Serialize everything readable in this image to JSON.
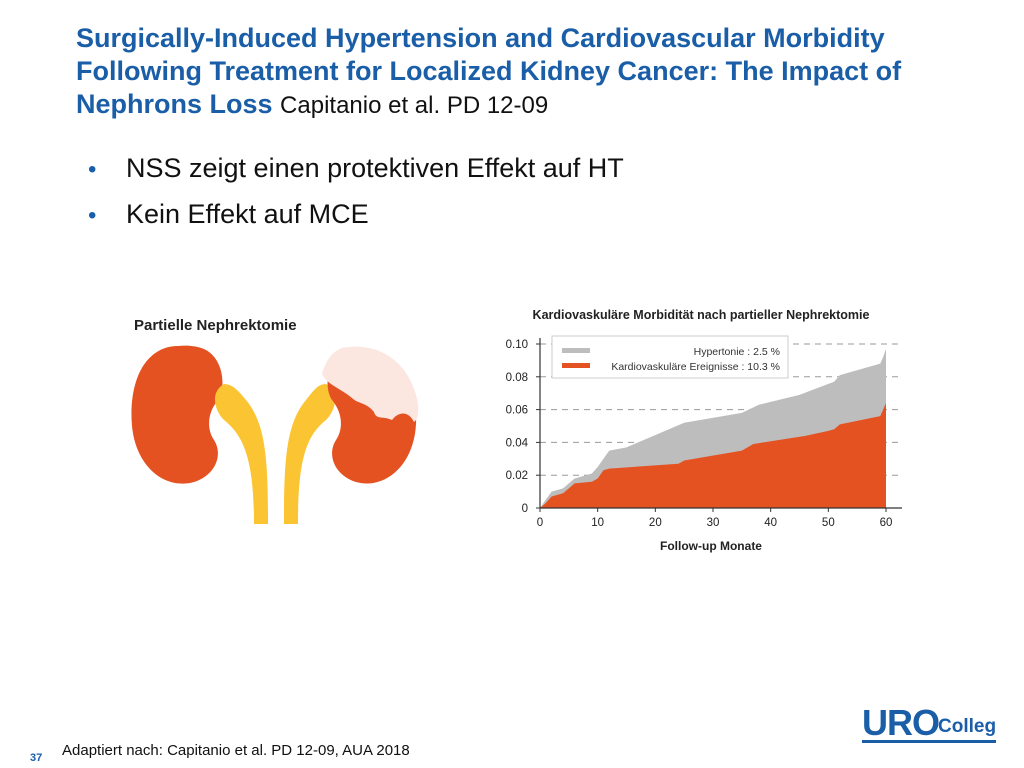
{
  "slide": {
    "title": "Surgically-Induced Hypertension and Cardiovascular Morbidity Following Treatment for Localized Kidney Cancer: The Impact of Nephrons Loss",
    "title_ref": "Capitanio et al. PD 12-09",
    "bullets": [
      "NSS zeigt einen protektiven Effekt auf HT",
      "Kein Effekt auf MCE"
    ],
    "illustration_label": "Partielle Nephrektomie",
    "footer": "Adaptiert nach: Capitanio et al. PD 12-09, AUA 2018",
    "page_number": "37",
    "logo": {
      "main": "URO",
      "sub": "Colleg"
    },
    "colors": {
      "title_blue": "#1a5ea8",
      "kidney_orange": "#e55222",
      "kidney_removed": "#fbe6e0",
      "ureter_yellow": "#fbc433"
    }
  },
  "chart_data": {
    "type": "area",
    "title": "Kardiovaskuläre Morbidität nach partieller Nephrektomie",
    "xlabel": "Follow-up Monate",
    "ylabel": "",
    "xlim": [
      0,
      60
    ],
    "ylim": [
      0,
      0.1
    ],
    "x_ticks": [
      0,
      10,
      20,
      30,
      40,
      50,
      60
    ],
    "y_ticks": [
      0,
      0.02,
      0.04,
      0.06,
      0.08,
      0.1
    ],
    "y_tick_labels": [
      "0",
      "0.02",
      "0.04",
      "0.06",
      "0.08",
      "0.10"
    ],
    "grid": "horizontal-dashed",
    "legend_position": "top",
    "series": [
      {
        "name": "Hypertonie : 2.5 %",
        "color": "#bdbdbd",
        "points": [
          [
            0,
            0
          ],
          [
            1,
            0.005
          ],
          [
            2,
            0.01
          ],
          [
            4,
            0.012
          ],
          [
            5,
            0.015
          ],
          [
            6,
            0.018
          ],
          [
            9,
            0.021
          ],
          [
            10,
            0.025
          ],
          [
            12,
            0.035
          ],
          [
            15,
            0.037
          ],
          [
            25,
            0.052
          ],
          [
            35,
            0.058
          ],
          [
            38,
            0.063
          ],
          [
            45,
            0.069
          ],
          [
            48,
            0.073
          ],
          [
            51,
            0.077
          ],
          [
            52,
            0.081
          ],
          [
            59,
            0.088
          ],
          [
            59.5,
            0.092
          ],
          [
            60,
            0.097
          ]
        ]
      },
      {
        "name": "Kardiovaskuläre Ereignisse : 10.3 %",
        "color": "#e55222",
        "points": [
          [
            0,
            0
          ],
          [
            1,
            0.003
          ],
          [
            2,
            0.007
          ],
          [
            4,
            0.009
          ],
          [
            5,
            0.012
          ],
          [
            6,
            0.015
          ],
          [
            9,
            0.016
          ],
          [
            10,
            0.018
          ],
          [
            11,
            0.023
          ],
          [
            12,
            0.024
          ],
          [
            24,
            0.027
          ],
          [
            25,
            0.029
          ],
          [
            35,
            0.035
          ],
          [
            37,
            0.039
          ],
          [
            46,
            0.044
          ],
          [
            50,
            0.047
          ],
          [
            51,
            0.048
          ],
          [
            52,
            0.051
          ],
          [
            59,
            0.056
          ],
          [
            59.5,
            0.06
          ],
          [
            60,
            0.064
          ]
        ]
      }
    ]
  }
}
